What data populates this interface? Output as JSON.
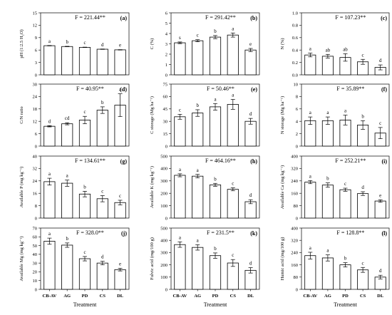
{
  "chart_data": [
    {
      "id": "a",
      "type": "bar",
      "panel_label": "(a)",
      "stat": "F = 221.44**",
      "categories": [
        "CB-AV",
        "AG",
        "PD",
        "CS",
        "DL"
      ],
      "values": [
        7.05,
        6.85,
        6.65,
        6.2,
        6.05
      ],
      "errors": [
        0.05,
        0.05,
        0.05,
        0.05,
        0.05
      ],
      "letters": [
        "a",
        "b",
        "c",
        "d",
        "e"
      ],
      "ylabel": "pH (1:2.5 H₂O)",
      "ylim": [
        0,
        15
      ],
      "yticks": [
        "0",
        "3",
        "6",
        "9",
        "12",
        "15"
      ]
    },
    {
      "id": "b",
      "type": "bar",
      "panel_label": "(b)",
      "stat": "F = 291.42**",
      "categories": [
        "CB-AV",
        "AG",
        "PD",
        "CS",
        "DL"
      ],
      "values": [
        3.1,
        3.3,
        3.65,
        3.85,
        2.4
      ],
      "errors": [
        0.08,
        0.1,
        0.15,
        0.2,
        0.15
      ],
      "letters": [
        "s",
        "c",
        "b",
        "a",
        "e"
      ],
      "ylabel": "C (%)",
      "ylim": [
        0,
        6
      ],
      "yticks": [
        "0",
        "1",
        "2",
        "3",
        "4",
        "5",
        "6"
      ]
    },
    {
      "id": "c",
      "type": "bar",
      "panel_label": "(c)",
      "stat": "F = 107.23**",
      "categories": [
        "CB-AV",
        "AG",
        "PD",
        "CS",
        "DL"
      ],
      "values": [
        0.32,
        0.3,
        0.28,
        0.21,
        0.12
      ],
      "errors": [
        0.03,
        0.03,
        0.06,
        0.04,
        0.04
      ],
      "letters": [
        "a",
        "ab",
        "ab",
        "c",
        "d"
      ],
      "ylabel": "N (%)",
      "ylim": [
        0,
        1
      ],
      "yticks": [
        "0.0",
        "0.2",
        "0.4",
        "0.6",
        "0.8",
        "1.0"
      ]
    },
    {
      "id": "d",
      "type": "bar",
      "panel_label": "(d)",
      "stat": "F = 40.95**",
      "categories": [
        "CB-AV",
        "AG",
        "PD",
        "CS",
        "DL"
      ],
      "values": [
        9.6,
        10.8,
        12.6,
        17.4,
        19.8
      ],
      "errors": [
        0.3,
        0.5,
        1.8,
        1.6,
        5.5
      ],
      "letters": [
        "d",
        "cd",
        "c",
        "b",
        "a"
      ],
      "ylabel": "C/N ratio",
      "ylim": [
        0,
        30
      ],
      "yticks": [
        "0",
        "6",
        "12",
        "18",
        "24",
        "30"
      ]
    },
    {
      "id": "e",
      "type": "bar",
      "panel_label": "(e)",
      "stat": "F = 50.46**",
      "categories": [
        "CB-AV",
        "AG",
        "PD",
        "CS",
        "DL"
      ],
      "values": [
        35.5,
        40,
        47.5,
        50.5,
        30
      ],
      "errors": [
        3,
        4,
        4,
        6,
        3.5
      ],
      "letters": [
        "c",
        "b",
        "a",
        "a",
        "d"
      ],
      "ylabel": "C storage (Mg ha⁻¹)",
      "ylim": [
        0,
        75
      ],
      "yticks": [
        "0",
        "15",
        "30",
        "45",
        "60",
        "75"
      ]
    },
    {
      "id": "f",
      "type": "bar",
      "panel_label": "(f)",
      "stat": "F = 35.89**",
      "categories": [
        "CB-AV",
        "AG",
        "PD",
        "CS",
        "DL"
      ],
      "values": [
        4.1,
        4.1,
        4.2,
        3.4,
        2.1
      ],
      "errors": [
        0.6,
        0.6,
        0.8,
        0.7,
        0.9
      ],
      "letters": [
        "a",
        "a",
        "a",
        "b",
        "c"
      ],
      "ylabel": "N storage (Mg ha⁻¹)",
      "ylim": [
        0,
        10
      ],
      "yticks": [
        "0",
        "2",
        "4",
        "6",
        "8",
        "10"
      ]
    },
    {
      "id": "g",
      "type": "bar",
      "panel_label": "(g)",
      "stat": "F = 134.61**",
      "categories": [
        "CB-AV",
        "AG",
        "PD",
        "CS",
        "DL"
      ],
      "values": [
        23.5,
        22.5,
        15.5,
        12.5,
        10
      ],
      "errors": [
        2.2,
        2,
        1.8,
        2,
        1.5
      ],
      "letters": [
        "a",
        "a",
        "b",
        "c",
        "c"
      ],
      "ylabel": "Available P (mg kg⁻¹)",
      "ylim": [
        0,
        40
      ],
      "yticks": [
        "0",
        "8",
        "16",
        "24",
        "32",
        "40"
      ]
    },
    {
      "id": "h",
      "type": "bar",
      "panel_label": "(h)",
      "stat": "F = 464.16**",
      "categories": [
        "CB-AV",
        "AG",
        "PD",
        "CS",
        "DL"
      ],
      "values": [
        345,
        338,
        268,
        232,
        132
      ],
      "errors": [
        12,
        14,
        12,
        12,
        16
      ],
      "letters": [
        "a",
        "a",
        "b",
        "c",
        "d"
      ],
      "ylabel": "Available K (mg kg⁻¹)",
      "ylim": [
        0,
        500
      ],
      "yticks": [
        "0",
        "100",
        "200",
        "300",
        "400",
        "500"
      ]
    },
    {
      "id": "i",
      "type": "bar",
      "panel_label": "(i)",
      "stat": "F = 252.21**",
      "categories": [
        "CB-AV",
        "AG",
        "PD",
        "CS",
        "DL"
      ],
      "values": [
        232,
        213,
        183,
        158,
        110
      ],
      "errors": [
        10,
        14,
        10,
        12,
        8
      ],
      "letters": [
        "a",
        "b",
        "c",
        "d",
        "e"
      ],
      "ylabel": "Available Ca (mg kg⁻¹)",
      "ylim": [
        0,
        400
      ],
      "yticks": [
        "0",
        "80",
        "160",
        "240",
        "320",
        "400"
      ]
    },
    {
      "id": "j",
      "type": "bar",
      "panel_label": "(j)",
      "stat": "F = 328.0**",
      "categories": [
        "CB-AV",
        "AG",
        "PD",
        "CS",
        "DL"
      ],
      "values": [
        55,
        50.5,
        35,
        30,
        22.5
      ],
      "errors": [
        3.5,
        2.5,
        2.5,
        2,
        1.5
      ],
      "letters": [
        "a",
        "b",
        "c",
        "d",
        "e"
      ],
      "ylabel": "Available Mg (mg kg⁻¹)",
      "ylim": [
        0,
        70
      ],
      "yticks": [
        "0",
        "10",
        "20",
        "30",
        "40",
        "50",
        "60",
        "70"
      ]
    },
    {
      "id": "k",
      "type": "bar",
      "panel_label": "(k)",
      "stat": "F = 231.5**",
      "categories": [
        "CB-AV",
        "AG",
        "PD",
        "CS",
        "DL"
      ],
      "values": [
        365,
        342,
        275,
        215,
        155
      ],
      "errors": [
        22,
        22,
        22,
        28,
        22
      ],
      "letters": [
        "a",
        "a",
        "b",
        "c",
        "d"
      ],
      "ylabel": "Fulvic acid (mg/100 g)",
      "ylim": [
        0,
        500
      ],
      "yticks": [
        "0",
        "100",
        "200",
        "300",
        "400",
        "500"
      ]
    },
    {
      "id": "l",
      "type": "bar",
      "panel_label": "(l)",
      "stat": "F = 128.8**",
      "categories": [
        "CB-AV",
        "AG",
        "PD",
        "CS",
        "DL"
      ],
      "values": [
        220,
        205,
        160,
        127,
        80
      ],
      "errors": [
        22,
        20,
        14,
        16,
        12
      ],
      "letters": [
        "a",
        "a",
        "b",
        "c",
        "d"
      ],
      "ylabel": "Humic acid (mg/100 g)",
      "ylim": [
        0,
        400
      ],
      "yticks": [
        "0",
        "80",
        "160",
        "240",
        "320",
        "400"
      ]
    }
  ],
  "xlabel": "Treatment"
}
